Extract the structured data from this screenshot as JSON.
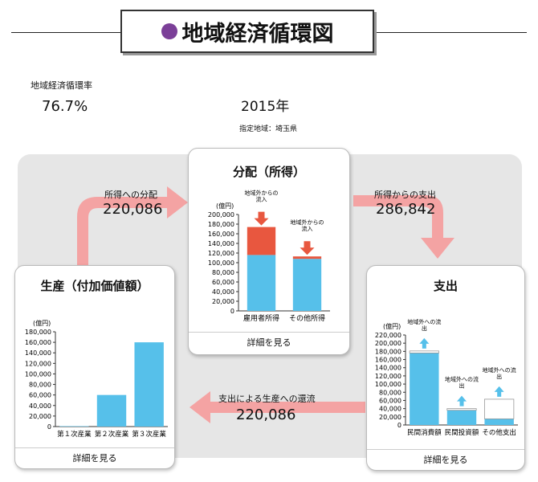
{
  "title": "地域経済循環図",
  "colors": {
    "accent": "#7b3f98",
    "bar": "#56c0ea",
    "inflow": "#e8573f",
    "arrow": "#f4a3a3",
    "panel": "#e6e6e6"
  },
  "circulation": {
    "label": "地域経済循環率",
    "value": "76.7%"
  },
  "year": "2015年",
  "region": "指定地域：埼玉県",
  "flows": {
    "income_distribution": {
      "label": "所得への分配",
      "value": "220,086"
    },
    "expenditure_from_income": {
      "label": "所得からの支出",
      "value": "286,842"
    },
    "return_to_production": {
      "label": "支出による生産への還流",
      "value": "220,086"
    }
  },
  "cards": {
    "production": {
      "title": "生産（付加価値額）",
      "footer": "詳細を見る"
    },
    "distribution": {
      "title": "分配（所得）",
      "footer": "詳細を見る"
    },
    "expenditure": {
      "title": "支出",
      "footer": "詳細を見る"
    }
  },
  "chart_data": [
    {
      "type": "bar",
      "title": "生産（付加価値額）",
      "ylabel": "(億円)",
      "ylim": [
        0,
        180000
      ],
      "yticks": [
        "0",
        "20,000",
        "40,000",
        "60,000",
        "80,000",
        "100,000",
        "120,000",
        "140,000",
        "160,000",
        "180,000"
      ],
      "categories": [
        "第１次産業",
        "第２次産業",
        "第３次産業"
      ],
      "values": [
        800,
        60000,
        160000
      ]
    },
    {
      "type": "bar",
      "stacked": true,
      "title": "分配（所得）",
      "ylabel": "(億円)",
      "ylim": [
        0,
        200000
      ],
      "yticks": [
        "0",
        "20,000",
        "40,000",
        "60,000",
        "80,000",
        "100,000",
        "120,000",
        "140,000",
        "160,000",
        "180,000",
        "200,000"
      ],
      "categories": [
        "雇用者所得",
        "その他所得"
      ],
      "series": [
        {
          "values": [
            116000,
            108000
          ]
        },
        {
          "values": [
            58000,
            5000
          ]
        }
      ],
      "annotations": [
        "地域外からの流入",
        "地域外からの流入"
      ]
    },
    {
      "type": "bar",
      "stacked": true,
      "title": "支出",
      "ylabel": "(億円)",
      "ylim": [
        0,
        220000
      ],
      "yticks": [
        "0",
        "20,000",
        "40,000",
        "60,000",
        "80,000",
        "100,000",
        "120,000",
        "140,000",
        "160,000",
        "180,000",
        "200,000",
        "220,000"
      ],
      "categories": [
        "民間消費額",
        "民間投資額",
        "その他支出"
      ],
      "series": [
        {
          "values": [
            176000,
            36000,
            15000
          ]
        },
        {
          "values": [
            5000,
            4000,
            48000
          ]
        }
      ],
      "annotations": [
        "地域外への流出",
        "地域外への流出",
        "地域外への流出"
      ]
    }
  ]
}
